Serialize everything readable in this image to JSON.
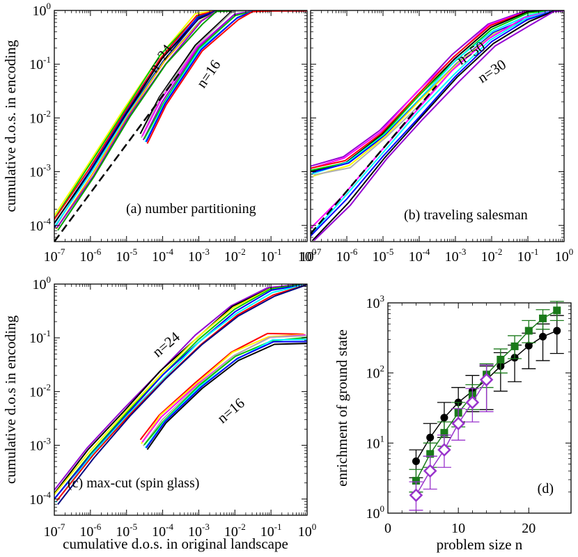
{
  "figure": {
    "xlabel_bottom": "cumulative d.o.s. in original landscape"
  },
  "colors": {
    "black": "#000000",
    "red": "#ff0000",
    "green": "#00c800",
    "blue": "#0000ff",
    "yellow": "#ffff00",
    "magenta": "#ff00ff",
    "cyan": "#00ffff",
    "gray": "#b0b0b0",
    "purple": "#9400d3",
    "darkgreen": "#00a000",
    "orange": "#ffa500",
    "navy": "#000080",
    "forest": "#1a7a1a",
    "violet": "#9933cc"
  },
  "chart_data": [
    {
      "id": "a",
      "type": "line",
      "panel_label": "(a) number partitioning",
      "ylabel": "cumulative d.o.s. in encoding",
      "xlabel": "",
      "xscale": "log",
      "yscale": "log",
      "xlim": [
        1e-07,
        1
      ],
      "ylim": [
        5e-05,
        1
      ],
      "xticks": [
        "10^-7",
        "10^-6",
        "10^-5",
        "10^-4",
        "10^-3",
        "10^-2",
        "10^-1",
        "10^0"
      ],
      "yticks": [
        "10^-4",
        "10^-3",
        "10^-2",
        "10^-1",
        "10^0"
      ],
      "annotations": [
        {
          "text": "n=24"
        },
        {
          "text": "n=16"
        }
      ],
      "reference_line": {
        "style": "dashed",
        "color": "#000000",
        "x": [
          1e-07,
          0.0003
        ],
        "y": [
          5e-05,
          0.07
        ]
      },
      "groups": [
        {
          "label": "n=24",
          "colors": [
            "yellow",
            "green",
            "red",
            "blue",
            "black",
            "navy",
            "cyan",
            "orange",
            "purple",
            "darkgreen"
          ],
          "x": [
            1e-07,
            1e-06,
            1e-05,
            0.0001,
            0.001,
            0.003,
            0.01,
            0.03,
            1
          ],
          "y": [
            0.0001,
            0.001,
            0.012,
            0.12,
            0.7,
            0.97,
            1,
            1,
            1
          ]
        },
        {
          "label": "n=16",
          "colors": [
            "black",
            "gray",
            "magenta",
            "purple",
            "green",
            "cyan",
            "blue",
            "red"
          ],
          "x": [
            3e-05,
            0.0001,
            0.001,
            0.01,
            0.03,
            0.1,
            1
          ],
          "y": [
            0.004,
            0.02,
            0.2,
            0.8,
            0.97,
            1,
            1
          ]
        }
      ]
    },
    {
      "id": "b",
      "type": "line",
      "panel_label": "(b) traveling salesman",
      "ylabel": "",
      "xlabel": "",
      "xscale": "log",
      "yscale": "log",
      "xlim": [
        1e-07,
        1
      ],
      "ylim": [
        5e-05,
        1
      ],
      "xticks": [
        "10^-7",
        "10^-6",
        "10^-5",
        "10^-4",
        "10^-3",
        "10^-2",
        "10^-1",
        "10^0"
      ],
      "yticks": [],
      "annotations": [
        {
          "text": "n=50"
        },
        {
          "text": "n=30"
        }
      ],
      "reference_line": {
        "style": "dashed",
        "color": "#000000",
        "x": [
          1e-07,
          0.0003
        ],
        "y": [
          7e-05,
          0.04
        ]
      },
      "groups": [
        {
          "label": "n=50",
          "colors": [
            "purple",
            "magenta",
            "red",
            "black",
            "green",
            "cyan",
            "blue",
            "yellow",
            "gray"
          ],
          "x": [
            1e-07,
            1e-06,
            1e-05,
            0.0001,
            0.001,
            0.01,
            0.1,
            0.5,
            1
          ],
          "y": [
            0.001,
            0.0015,
            0.005,
            0.025,
            0.12,
            0.45,
            0.85,
            1,
            1
          ]
        },
        {
          "label": "n=30",
          "colors": [
            "magenta",
            "cyan",
            "blue",
            "black",
            "purple"
          ],
          "x": [
            1e-07,
            1e-06,
            1e-05,
            0.0001,
            0.001,
            0.01,
            0.1,
            0.5,
            1
          ],
          "y": [
            6e-05,
            0.0003,
            0.002,
            0.011,
            0.06,
            0.25,
            0.65,
            0.97,
            1
          ]
        }
      ]
    },
    {
      "id": "c",
      "type": "line",
      "panel_label": "(c) max-cut (spin glass)",
      "ylabel": "cumulative d.o.s in encoding",
      "xlabel": "cumulative d.o.s. in original landscape",
      "xscale": "log",
      "yscale": "log",
      "xlim": [
        1e-07,
        1
      ],
      "ylim": [
        5e-05,
        1
      ],
      "xticks": [
        "10^-7",
        "10^-6",
        "10^-5",
        "10^-4",
        "10^-3",
        "10^-2",
        "10^-1",
        "10^0"
      ],
      "yticks": [
        "10^-4",
        "10^-3",
        "10^-2",
        "10^-1",
        "10^0"
      ],
      "annotations": [
        {
          "text": "n=24"
        },
        {
          "text": "n=16"
        }
      ],
      "groups": [
        {
          "label": "n=24",
          "colors": [
            "purple",
            "black",
            "yellow",
            "green",
            "blue",
            "cyan",
            "red",
            "navy"
          ],
          "x": [
            1e-07,
            1e-06,
            1e-05,
            0.0001,
            0.001,
            0.01,
            0.1,
            1
          ],
          "y": [
            0.0001,
            0.0007,
            0.004,
            0.02,
            0.09,
            0.32,
            0.75,
            1
          ]
        },
        {
          "label": "n=16",
          "colors": [
            "red",
            "yellow",
            "magenta",
            "gray",
            "green",
            "cyan",
            "blue",
            "black"
          ],
          "x": [
            3e-05,
            0.0001,
            0.001,
            0.01,
            0.1,
            1
          ],
          "y": [
            0.001,
            0.003,
            0.013,
            0.045,
            0.095,
            0.1
          ]
        }
      ]
    },
    {
      "id": "d",
      "type": "scatter",
      "panel_label": "(d)",
      "ylabel": "enrichment of ground state",
      "xlabel": "problem size n",
      "xscale": "linear",
      "yscale": "log",
      "xlim": [
        0,
        26
      ],
      "ylim": [
        1,
        1000
      ],
      "xticks": [
        "0",
        "10",
        "20"
      ],
      "yticks": [
        "10^0",
        "10^1",
        "10^2",
        "10^3"
      ],
      "series": [
        {
          "marker": "circle",
          "color": "#000000",
          "x": [
            4,
            6,
            8,
            10,
            12,
            14,
            16,
            18,
            20,
            22,
            24
          ],
          "y": [
            5.5,
            12,
            23,
            38,
            55,
            80,
            125,
            165,
            245,
            330,
            400
          ],
          "err_low": [
            3.2,
            6.5,
            12,
            20,
            28,
            30,
            55,
            75,
            115,
            150,
            190
          ],
          "err_high": [
            8,
            19,
            38,
            62,
            92,
            125,
            195,
            250,
            370,
            500,
            660
          ]
        },
        {
          "marker": "square",
          "color": "#1a7a1a",
          "x": [
            4,
            6,
            8,
            10,
            12,
            14,
            16,
            18,
            20,
            22,
            24
          ],
          "y": [
            2.9,
            7,
            14,
            27,
            48,
            95,
            155,
            240,
            400,
            600,
            780
          ],
          "err_low": [
            2,
            4.5,
            9,
            17,
            30,
            62,
            100,
            160,
            270,
            420,
            560
          ],
          "err_high": [
            4.2,
            10,
            20,
            38,
            68,
            135,
            220,
            340,
            560,
            800,
            1050
          ]
        },
        {
          "marker": "diamond-open",
          "color": "#9933cc",
          "x": [
            4,
            6,
            8,
            10,
            12,
            14
          ],
          "y": [
            1.8,
            4,
            8,
            19,
            38,
            80
          ],
          "err_low": [
            1.1,
            2.2,
            4.5,
            11,
            20,
            28
          ],
          "err_high": [
            2.8,
            6.5,
            13,
            31,
            60,
            130
          ]
        }
      ]
    }
  ]
}
